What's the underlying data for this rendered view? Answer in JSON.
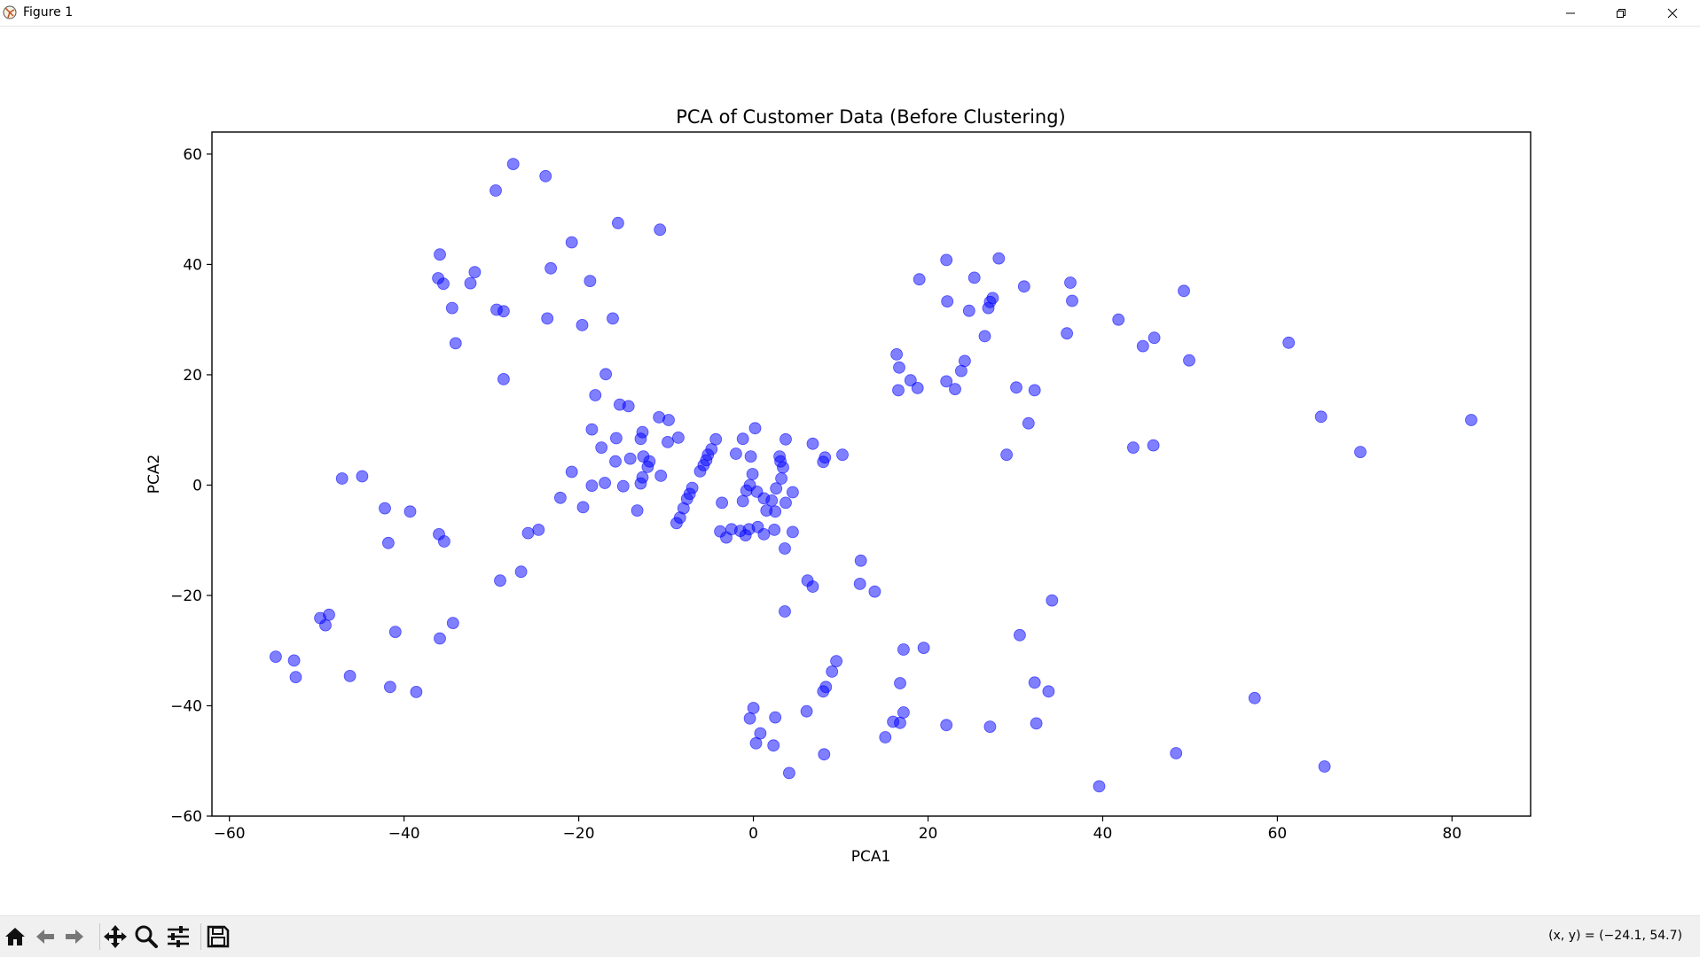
{
  "window": {
    "title": "Figure 1",
    "icons": [
      "app-icon",
      "minimize-icon",
      "restore-icon",
      "close-icon"
    ]
  },
  "toolbar": {
    "icons": [
      "home-icon",
      "back-icon",
      "forward-icon",
      "pan-icon",
      "zoom-icon",
      "configure-subplots-icon",
      "save-icon"
    ],
    "coords_text": "(x, y) = (−24.1, 54.7)"
  },
  "chart_data": {
    "type": "scatter",
    "title": "PCA of Customer Data (Before Clustering)",
    "xlabel": "PCA1",
    "ylabel": "PCA2",
    "xlim": [
      -62,
      89
    ],
    "ylim": [
      -60,
      64
    ],
    "xticks": [
      -60,
      -40,
      -20,
      0,
      20,
      40,
      60,
      80
    ],
    "yticks": [
      -60,
      -40,
      -20,
      0,
      20,
      40,
      60
    ],
    "grid": false,
    "marker_color": "#0000ff",
    "marker_alpha": 0.5,
    "points": [
      [
        -27.5,
        58.2
      ],
      [
        -29.5,
        53.4
      ],
      [
        -23.8,
        56.0
      ],
      [
        -15.5,
        47.5
      ],
      [
        -10.7,
        46.3
      ],
      [
        -20.8,
        44.0
      ],
      [
        -35.9,
        41.8
      ],
      [
        -23.2,
        39.3
      ],
      [
        -31.9,
        38.6
      ],
      [
        -36.1,
        37.5
      ],
      [
        -35.5,
        36.5
      ],
      [
        -32.4,
        36.6
      ],
      [
        -18.7,
        37.0
      ],
      [
        -34.5,
        32.1
      ],
      [
        -29.4,
        31.8
      ],
      [
        -28.6,
        31.5
      ],
      [
        -23.6,
        30.2
      ],
      [
        -16.1,
        30.2
      ],
      [
        -19.6,
        29.0
      ],
      [
        -34.1,
        25.7
      ],
      [
        -28.6,
        19.2
      ],
      [
        -16.9,
        20.1
      ],
      [
        -18.1,
        16.3
      ],
      [
        -15.3,
        14.6
      ],
      [
        -14.3,
        14.3
      ],
      [
        -10.8,
        12.3
      ],
      [
        -9.7,
        11.8
      ],
      [
        -18.5,
        10.1
      ],
      [
        -12.7,
        9.6
      ],
      [
        -15.7,
        8.5
      ],
      [
        -12.9,
        8.4
      ],
      [
        -8.6,
        8.6
      ],
      [
        -9.8,
        7.8
      ],
      [
        -17.4,
        6.8
      ],
      [
        -12.6,
        5.2
      ],
      [
        -14.1,
        4.8
      ],
      [
        -11.9,
        4.3
      ],
      [
        -15.8,
        4.3
      ],
      [
        -12.1,
        3.3
      ],
      [
        -20.8,
        2.4
      ],
      [
        -10.6,
        1.7
      ],
      [
        -12.7,
        1.4
      ],
      [
        -12.9,
        0.3
      ],
      [
        -17.0,
        0.4
      ],
      [
        -18.5,
        -0.1
      ],
      [
        -14.9,
        -0.2
      ],
      [
        -22.1,
        -2.3
      ],
      [
        -19.5,
        -4.0
      ],
      [
        -13.3,
        -4.6
      ],
      [
        -47.1,
        1.2
      ],
      [
        -44.8,
        1.6
      ],
      [
        -42.2,
        -4.2
      ],
      [
        -39.3,
        -4.8
      ],
      [
        -41.8,
        -10.5
      ],
      [
        -36.0,
        -8.9
      ],
      [
        -35.4,
        -10.2
      ],
      [
        -25.8,
        -8.7
      ],
      [
        -24.6,
        -8.1
      ],
      [
        -29.0,
        -17.3
      ],
      [
        -26.6,
        -15.7
      ],
      [
        -49.6,
        -24.1
      ],
      [
        -48.6,
        -23.5
      ],
      [
        -49.0,
        -25.4
      ],
      [
        -41.0,
        -26.6
      ],
      [
        -34.4,
        -25.0
      ],
      [
        -35.9,
        -27.8
      ],
      [
        -54.7,
        -31.1
      ],
      [
        -52.6,
        -31.8
      ],
      [
        -52.4,
        -34.8
      ],
      [
        -46.2,
        -34.6
      ],
      [
        -41.6,
        -36.6
      ],
      [
        -38.6,
        -37.5
      ],
      [
        -4.3,
        8.3
      ],
      [
        -4.8,
        6.5
      ],
      [
        -5.2,
        5.5
      ],
      [
        -5.4,
        4.5
      ],
      [
        -5.7,
        3.6
      ],
      [
        -6.1,
        2.5
      ],
      [
        -7.0,
        -0.5
      ],
      [
        -7.3,
        -1.6
      ],
      [
        -7.6,
        -2.5
      ],
      [
        -8.0,
        -4.2
      ],
      [
        -8.4,
        -5.9
      ],
      [
        -8.8,
        -6.9
      ],
      [
        -3.6,
        -3.2
      ],
      [
        -3.8,
        -8.4
      ],
      [
        -3.1,
        -9.5
      ],
      [
        -2.5,
        -8.0
      ],
      [
        -1.5,
        -8.3
      ],
      [
        -0.9,
        -9.1
      ],
      [
        -0.5,
        -8.0
      ],
      [
        -1.2,
        8.4
      ],
      [
        0.2,
        10.3
      ],
      [
        -2.0,
        5.7
      ],
      [
        -0.3,
        5.2
      ],
      [
        -0.1,
        2.0
      ],
      [
        -0.4,
        0.0
      ],
      [
        -0.8,
        -1.0
      ],
      [
        -1.2,
        -2.9
      ],
      [
        0.4,
        -1.2
      ],
      [
        1.2,
        -2.4
      ],
      [
        2.1,
        -2.8
      ],
      [
        2.6,
        -0.6
      ],
      [
        3.2,
        1.2
      ],
      [
        3.1,
        4.3
      ],
      [
        3.0,
        5.2
      ],
      [
        3.4,
        3.2
      ],
      [
        3.7,
        8.3
      ],
      [
        1.5,
        -4.6
      ],
      [
        2.5,
        -4.8
      ],
      [
        0.5,
        -7.6
      ],
      [
        1.2,
        -8.9
      ],
      [
        2.4,
        -8.1
      ],
      [
        3.7,
        -3.2
      ],
      [
        4.5,
        -1.3
      ],
      [
        4.5,
        -8.5
      ],
      [
        3.6,
        -11.5
      ],
      [
        6.8,
        7.5
      ],
      [
        8.0,
        4.2
      ],
      [
        8.2,
        5.0
      ],
      [
        10.2,
        5.5
      ],
      [
        6.2,
        -17.3
      ],
      [
        6.8,
        -18.4
      ],
      [
        12.3,
        -13.7
      ],
      [
        12.2,
        -17.9
      ],
      [
        13.9,
        -19.3
      ],
      [
        3.6,
        -22.9
      ],
      [
        0.0,
        -40.4
      ],
      [
        -0.4,
        -42.3
      ],
      [
        0.8,
        -45.0
      ],
      [
        0.3,
        -46.8
      ],
      [
        2.3,
        -47.2
      ],
      [
        2.5,
        -42.1
      ],
      [
        4.1,
        -52.2
      ],
      [
        6.1,
        -41.0
      ],
      [
        8.0,
        -37.4
      ],
      [
        8.3,
        -36.6
      ],
      [
        9.0,
        -33.8
      ],
      [
        9.5,
        -31.9
      ],
      [
        8.1,
        -48.8
      ],
      [
        16.4,
        23.7
      ],
      [
        16.7,
        21.3
      ],
      [
        16.6,
        17.2
      ],
      [
        18.0,
        19.0
      ],
      [
        18.8,
        17.6
      ],
      [
        23.1,
        17.4
      ],
      [
        23.8,
        20.7
      ],
      [
        24.2,
        22.5
      ],
      [
        22.1,
        18.8
      ],
      [
        26.5,
        27.0
      ],
      [
        28.1,
        41.1
      ],
      [
        22.1,
        40.8
      ],
      [
        19.0,
        37.3
      ],
      [
        25.3,
        37.6
      ],
      [
        22.2,
        33.3
      ],
      [
        24.7,
        31.6
      ],
      [
        26.9,
        32.1
      ],
      [
        27.1,
        33.2
      ],
      [
        27.4,
        33.9
      ],
      [
        31.0,
        36.0
      ],
      [
        36.3,
        36.7
      ],
      [
        36.5,
        33.4
      ],
      [
        35.9,
        27.5
      ],
      [
        30.1,
        17.7
      ],
      [
        32.2,
        17.2
      ],
      [
        31.5,
        11.2
      ],
      [
        29.0,
        5.5
      ],
      [
        41.8,
        30.0
      ],
      [
        44.6,
        25.2
      ],
      [
        45.9,
        26.7
      ],
      [
        49.3,
        35.2
      ],
      [
        49.9,
        22.6
      ],
      [
        43.5,
        6.8
      ],
      [
        45.8,
        7.2
      ],
      [
        61.3,
        25.8
      ],
      [
        65.0,
        12.4
      ],
      [
        69.5,
        6.0
      ],
      [
        82.2,
        11.8
      ],
      [
        34.2,
        -20.9
      ],
      [
        30.5,
        -27.2
      ],
      [
        17.2,
        -29.8
      ],
      [
        19.5,
        -29.5
      ],
      [
        16.8,
        -35.9
      ],
      [
        32.2,
        -35.8
      ],
      [
        33.8,
        -37.4
      ],
      [
        17.2,
        -41.2
      ],
      [
        16.0,
        -42.9
      ],
      [
        16.8,
        -43.1
      ],
      [
        15.1,
        -45.7
      ],
      [
        22.1,
        -43.5
      ],
      [
        27.1,
        -43.8
      ],
      [
        32.4,
        -43.2
      ],
      [
        39.6,
        -54.6
      ],
      [
        48.4,
        -48.6
      ],
      [
        57.4,
        -38.6
      ],
      [
        65.4,
        -51.0
      ]
    ]
  }
}
